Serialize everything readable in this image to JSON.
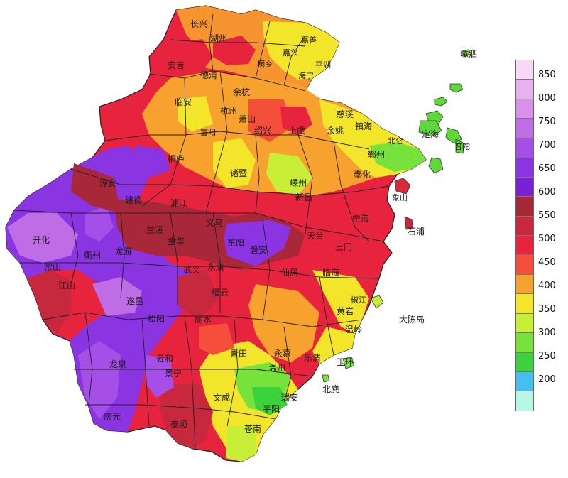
{
  "places": {
    "changxing": "长兴",
    "huzhou": "湖州",
    "anji": "安吉",
    "deqing": "德清",
    "jiashan": "嘉善",
    "jiaxing": "嘉兴",
    "pinghu": "平湖",
    "tongxiang": "桐乡",
    "haining": "海宁",
    "shengsi": "嵊泗",
    "lin_an": "临安",
    "yuhang": "余杭",
    "hangzhou": "杭州",
    "xiaoshan": "萧山",
    "fuyang": "富阳",
    "shaoxing": "绍兴",
    "shangyu": "上虞",
    "yuyao": "余姚",
    "cixi": "慈溪",
    "zhenhai": "镇海",
    "beilun": "北仑",
    "dinghai": "定海",
    "putuo": "普陀",
    "yinzhou": "鄞州",
    "fenghua": "奉化",
    "tonglu": "桐庐",
    "chun_an": "淳安",
    "jiande": "建德",
    "zhuji": "诸暨",
    "shengzhou": "嵊州",
    "xinchang": "新昌",
    "ninghai": "宁海",
    "xiangshan": "象山",
    "shipu": "石浦",
    "kaihua": "开化",
    "quzhou": "衢州",
    "longyou": "龙游",
    "lanxi": "兰溪",
    "jinhua": "金华",
    "pujiang": "浦江",
    "yiwu": "义乌",
    "dongyang": "东阳",
    "pan_an": "磐安",
    "tiantai": "天台",
    "sanmen": "三门",
    "changshan": "常山",
    "jiangshan": "江山",
    "suichang": "遂昌",
    "wuyi": "武义",
    "yongkang": "永康",
    "jinyun": "缙云",
    "xianju": "仙居",
    "linhai": "临海",
    "jiaojiang": "椒江",
    "songyang": "松阳",
    "lishui": "丽水",
    "huangyan": "黄岩",
    "wenling": "温岭",
    "yunhe": "云和",
    "qingtian": "青田",
    "yongjia": "永嘉",
    "yuhuan": "玉环",
    "dachen": "大陈岛",
    "longquan": "龙泉",
    "jingning": "景宁",
    "wenzhou": "温州",
    "yueqing": "乐清",
    "qingyuan": "庆元",
    "wencheng": "文成",
    "rui_an": "瑞安",
    "pingyang": "平阳",
    "taishun": "泰顺",
    "cangnan": "苍南",
    "beiji": "北麂"
  },
  "legend": {
    "colors": [
      "#f7d8f6",
      "#e8b2ef",
      "#d890ea",
      "#bf6de6",
      "#a64ee8",
      "#8a34e2",
      "#7a21d6",
      "#a8283a",
      "#c8283e",
      "#e8233e",
      "#f54e3a",
      "#f7a12f",
      "#f2e52a",
      "#c8ee37",
      "#78e23c",
      "#3bd33c",
      "#44bff0",
      "#b6f7e6"
    ],
    "labels": [
      "850",
      "800",
      "750",
      "700",
      "650",
      "600",
      "550",
      "500",
      "450",
      "400",
      "350",
      "300",
      "250",
      "200"
    ]
  }
}
